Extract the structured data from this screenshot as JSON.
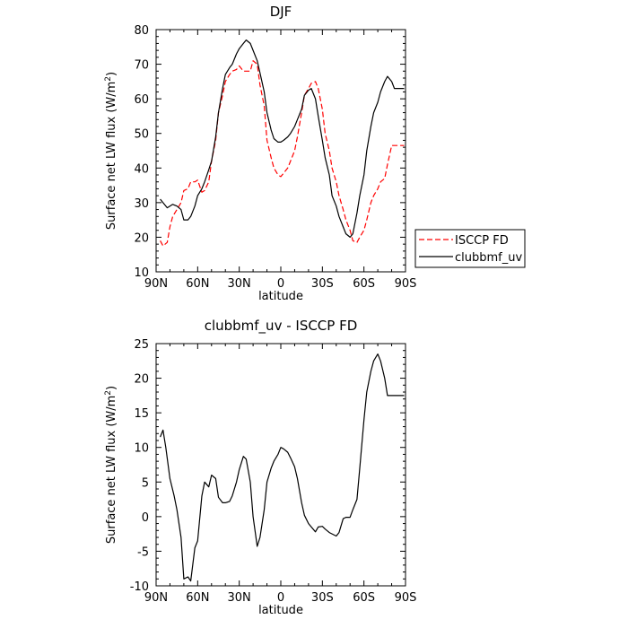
{
  "chart_data": [
    {
      "type": "line",
      "title": "DJF",
      "xlabel": "latitude",
      "ylabel_main": "Surface net LW flux (W/m",
      "ylabel_sup": "2",
      "ylabel_tail": ")",
      "xlim": [
        -90,
        90
      ],
      "ylim": [
        10,
        80
      ],
      "x_ticks": [
        -90,
        -60,
        -30,
        0,
        30,
        60,
        90
      ],
      "x_tick_labels": [
        "90N",
        "60N",
        "30N",
        "0",
        "30S",
        "60S",
        "90S"
      ],
      "y_ticks": [
        10,
        20,
        30,
        40,
        50,
        60,
        70,
        80
      ],
      "y_tick_labels": [
        "10",
        "20",
        "30",
        "40",
        "50",
        "60",
        "70",
        "80"
      ],
      "legend_position": "right",
      "series": [
        {
          "name": "ISCCP FD",
          "color": "#ff0000",
          "dashed": true,
          "x": [
            -87,
            -85,
            -82,
            -80,
            -78,
            -75,
            -72,
            -70,
            -67,
            -65,
            -62,
            -60,
            -57,
            -55,
            -52,
            -50,
            -47,
            -45,
            -42,
            -40,
            -37,
            -35,
            -32,
            -30,
            -27,
            -25,
            -22,
            -20,
            -17,
            -15,
            -12,
            -10,
            -7,
            -5,
            -2,
            0,
            2,
            5,
            7,
            10,
            12,
            15,
            17,
            20,
            22,
            25,
            27,
            30,
            32,
            35,
            37,
            40,
            42,
            45,
            47,
            50,
            52,
            55,
            57,
            60,
            62,
            65,
            67,
            70,
            72,
            75,
            77,
            80,
            82,
            85,
            87,
            89
          ],
          "y": [
            19,
            17.5,
            18.5,
            23,
            26,
            28,
            30,
            33.5,
            34,
            36,
            36,
            36.5,
            33,
            33.5,
            36,
            42,
            48,
            56,
            61,
            65,
            67,
            68,
            68.5,
            69.5,
            68,
            68,
            68,
            71,
            70,
            64,
            58,
            48,
            43,
            40,
            38,
            37.5,
            38.5,
            40,
            42,
            45,
            49,
            56,
            61,
            63,
            64.5,
            65,
            63,
            57,
            50,
            45,
            40,
            36,
            32,
            28,
            25,
            22,
            19,
            18.5,
            20,
            22,
            25,
            30,
            32,
            34,
            36,
            37,
            41,
            46.5,
            46.5,
            46.5,
            46.5,
            46.5
          ]
        },
        {
          "name": "clubbmf_uv",
          "color": "#000000",
          "dashed": false,
          "x": [
            -87,
            -85,
            -82,
            -80,
            -78,
            -75,
            -72,
            -70,
            -67,
            -65,
            -62,
            -60,
            -57,
            -55,
            -52,
            -50,
            -47,
            -45,
            -42,
            -40,
            -37,
            -35,
            -32,
            -30,
            -27,
            -25,
            -22,
            -20,
            -17,
            -15,
            -12,
            -10,
            -7,
            -5,
            -2,
            0,
            2,
            5,
            7,
            10,
            12,
            15,
            17,
            20,
            22,
            25,
            27,
            30,
            32,
            35,
            37,
            40,
            42,
            45,
            47,
            50,
            52,
            55,
            57,
            60,
            62,
            65,
            67,
            70,
            72,
            75,
            77,
            80,
            82,
            85,
            87,
            89
          ],
          "y": [
            31,
            30,
            28.5,
            29,
            29.5,
            29,
            28,
            25,
            25,
            26,
            29,
            32,
            34,
            36,
            39.5,
            42,
            49,
            56,
            63,
            67,
            69,
            70,
            73,
            74.5,
            76,
            77,
            76,
            74,
            71,
            67.5,
            62,
            56,
            51,
            48.5,
            47.5,
            47.5,
            48,
            49,
            50,
            52,
            54,
            57,
            61,
            62.5,
            63,
            60,
            55,
            48,
            43,
            38,
            32,
            29,
            26,
            23,
            21,
            20,
            21,
            27,
            32,
            38,
            45,
            52,
            56,
            59,
            62,
            65,
            66.5,
            65,
            63,
            63,
            63,
            63
          ]
        }
      ]
    },
    {
      "type": "line",
      "title": "clubbmf_uv - ISCCP FD",
      "xlabel": "latitude",
      "ylabel_main": "Surface net LW flux (W/m",
      "ylabel_sup": "2",
      "ylabel_tail": ")",
      "xlim": [
        -90,
        90
      ],
      "ylim": [
        -10,
        25
      ],
      "x_ticks": [
        -90,
        -60,
        -30,
        0,
        30,
        60,
        90
      ],
      "x_tick_labels": [
        "90N",
        "60N",
        "30N",
        "0",
        "30S",
        "60S",
        "90S"
      ],
      "y_ticks": [
        -10,
        -5,
        0,
        5,
        10,
        15,
        20,
        25
      ],
      "y_tick_labels": [
        "-10",
        "-5",
        "0",
        "5",
        "10",
        "15",
        "20",
        "25"
      ],
      "series": [
        {
          "color": "#000000",
          "dashed": false,
          "x": [
            -87,
            -85,
            -83,
            -80,
            -77,
            -75,
            -72,
            -70,
            -67,
            -65,
            -62,
            -60,
            -57,
            -55,
            -52,
            -50,
            -47,
            -45,
            -42,
            -40,
            -37,
            -35,
            -32,
            -30,
            -27,
            -25,
            -22,
            -20,
            -17,
            -15,
            -12,
            -10,
            -7,
            -5,
            -2,
            0,
            2,
            5,
            7,
            10,
            12,
            15,
            17,
            20,
            22,
            25,
            27,
            30,
            32,
            35,
            37,
            40,
            42,
            45,
            47,
            50,
            52,
            55,
            57,
            60,
            62,
            65,
            67,
            70,
            72,
            75,
            77,
            80,
            82,
            85,
            87,
            89
          ],
          "y": [
            11.5,
            12.5,
            10,
            5.5,
            3,
            1,
            -3,
            -9,
            -8.7,
            -9.3,
            -4.5,
            -3.5,
            3,
            5,
            4.3,
            6,
            5.5,
            2.8,
            2,
            2,
            2.2,
            3,
            5,
            6.8,
            8.7,
            8.3,
            5,
            0,
            -4.3,
            -3,
            1,
            5,
            7,
            8,
            9,
            10,
            9.8,
            9.3,
            8.5,
            7.2,
            5.5,
            2,
            0.2,
            -1,
            -1.5,
            -2.2,
            -1.5,
            -1.4,
            -1.8,
            -2.3,
            -2.5,
            -2.8,
            -2.3,
            -0.3,
            -0.1,
            -0.1,
            1,
            2.5,
            7,
            14,
            18,
            21,
            22.5,
            23.5,
            22.5,
            20,
            17.5,
            17.5,
            17.5,
            17.5,
            17.5,
            17.5
          ]
        }
      ]
    }
  ]
}
